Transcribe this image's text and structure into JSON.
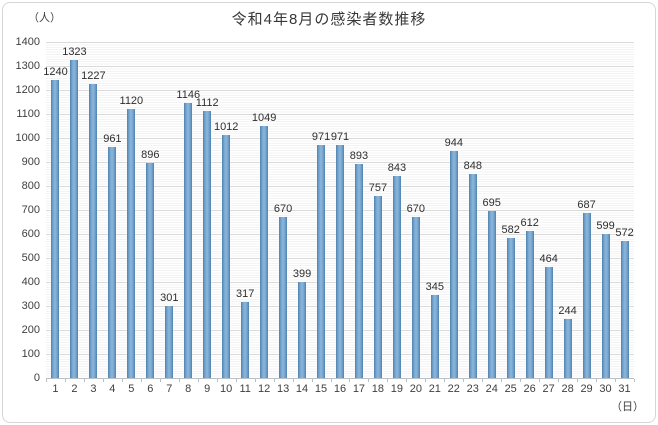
{
  "chart": {
    "title": "令和4年8月の感染者数推移",
    "y_unit_label": "（人）",
    "x_unit_label": "（日）",
    "colors": {
      "bar": "#6fa0cb",
      "bar_edge": "#4f82ae",
      "gridline_major": "#dadada",
      "gridline_minor": "#f3f3f3",
      "axis_line": "#b9bfc6",
      "text": "#3f3f3f",
      "background": "#ffffff"
    }
  },
  "chart_data": {
    "type": "bar",
    "title": "令和4年8月の感染者数推移",
    "xlabel": "（日）",
    "ylabel": "（人）",
    "categories": [
      "1",
      "2",
      "3",
      "4",
      "5",
      "6",
      "7",
      "8",
      "9",
      "10",
      "11",
      "12",
      "13",
      "14",
      "15",
      "16",
      "17",
      "18",
      "19",
      "20",
      "21",
      "22",
      "23",
      "24",
      "25",
      "26",
      "27",
      "28",
      "29",
      "30",
      "31"
    ],
    "values": [
      1240,
      1323,
      1227,
      961,
      1120,
      896,
      301,
      1146,
      1112,
      1012,
      317,
      1049,
      670,
      399,
      971,
      971,
      893,
      757,
      843,
      670,
      345,
      944,
      848,
      695,
      582,
      612,
      464,
      244,
      687,
      599,
      572
    ],
    "ylim": [
      0,
      1400
    ],
    "y_tick_step": 100,
    "grid": "horizontal major + minor",
    "legend": "none",
    "data_labels": true
  }
}
